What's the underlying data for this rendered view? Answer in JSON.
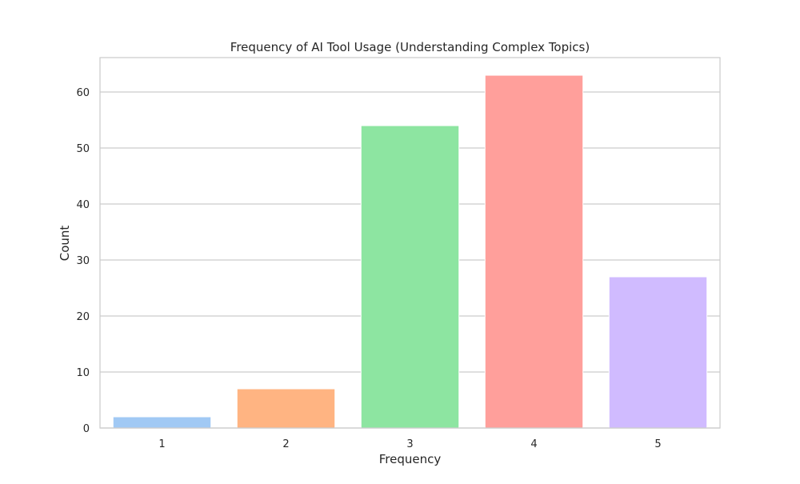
{
  "chart_data": {
    "type": "bar",
    "title": "Frequency of AI Tool Usage (Understanding Complex Topics)",
    "xlabel": "Frequency",
    "ylabel": "Count",
    "categories": [
      "1",
      "2",
      "3",
      "4",
      "5"
    ],
    "values": [
      2,
      7,
      54,
      63,
      27
    ],
    "colors": [
      "#a1c9f4",
      "#ffb482",
      "#8de5a1",
      "#ff9f9b",
      "#d0bbff"
    ],
    "yticks": [
      0,
      10,
      20,
      30,
      40,
      50,
      60
    ],
    "ylim": [
      0,
      66.15
    ],
    "grid": true,
    "legend": "none"
  }
}
